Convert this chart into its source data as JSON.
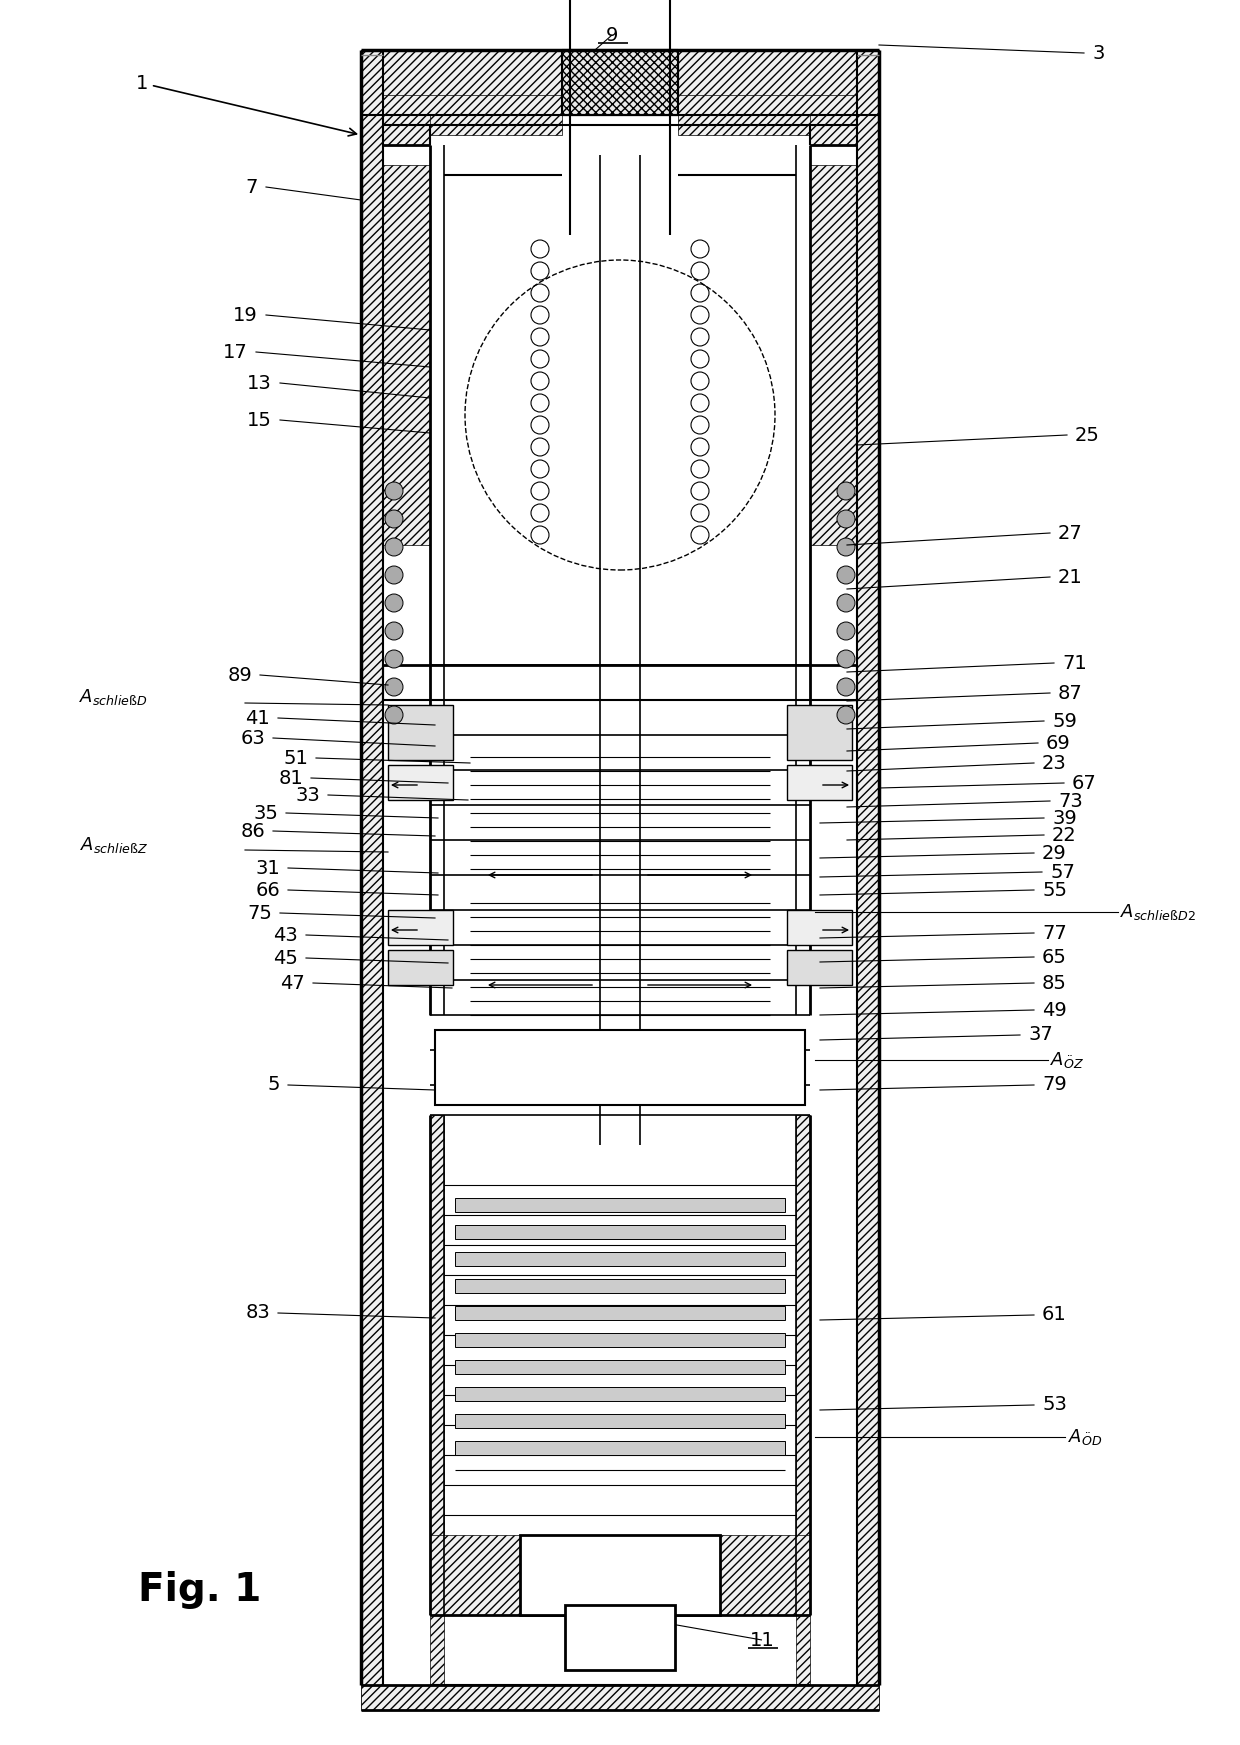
{
  "background_color": "#ffffff",
  "line_color": "#000000",
  "fig_label": "Fig. 1",
  "figsize": [
    12.4,
    17.45
  ],
  "dpi": 100,
  "labels_left": {
    "1": [
      150,
      1660,
      380,
      1610
    ],
    "7": [
      255,
      1555,
      380,
      1540
    ],
    "19": [
      255,
      1430,
      390,
      1415
    ],
    "13": [
      270,
      1360,
      390,
      1345
    ],
    "17": [
      248,
      1390,
      390,
      1375
    ],
    "15": [
      268,
      1325,
      390,
      1310
    ],
    "89": [
      250,
      1068,
      383,
      1058
    ],
    "41": [
      268,
      1025,
      390,
      1018
    ],
    "63": [
      262,
      1005,
      390,
      998
    ],
    "51": [
      305,
      985,
      415,
      980
    ],
    "81": [
      300,
      965,
      400,
      960
    ],
    "33": [
      318,
      948,
      415,
      943
    ],
    "35": [
      275,
      930,
      392,
      925
    ],
    "86": [
      262,
      912,
      390,
      907
    ],
    "31": [
      278,
      875,
      390,
      870
    ],
    "66": [
      278,
      853,
      392,
      848
    ],
    "75": [
      270,
      830,
      390,
      825
    ],
    "43": [
      295,
      808,
      392,
      803
    ],
    "45": [
      295,
      785,
      392,
      780
    ],
    "47": [
      302,
      760,
      400,
      755
    ],
    "5": [
      278,
      660,
      390,
      655
    ],
    "83": [
      268,
      430,
      385,
      425
    ]
  },
  "labels_right": {
    "3": [
      1090,
      1690,
      862,
      1695
    ],
    "25": [
      1070,
      1310,
      862,
      1305
    ],
    "27": [
      1055,
      1210,
      840,
      1200
    ],
    "21": [
      1055,
      1165,
      840,
      1158
    ],
    "71": [
      1060,
      1080,
      862,
      1073
    ],
    "87": [
      1055,
      1050,
      862,
      1044
    ],
    "59": [
      1050,
      1022,
      862,
      1016
    ],
    "69": [
      1044,
      1000,
      862,
      994
    ],
    "23": [
      1040,
      980,
      862,
      974
    ],
    "67": [
      1070,
      962,
      862,
      957
    ],
    "73": [
      1055,
      945,
      862,
      939
    ],
    "39": [
      1050,
      928,
      840,
      923
    ],
    "22": [
      1050,
      912,
      862,
      906
    ],
    "29": [
      1040,
      893,
      840,
      888
    ],
    "57": [
      1048,
      873,
      840,
      868
    ],
    "55": [
      1040,
      855,
      840,
      850
    ],
    "77": [
      1040,
      812,
      840,
      807
    ],
    "65": [
      1040,
      788,
      840,
      783
    ],
    "85": [
      1040,
      762,
      840,
      757
    ],
    "49": [
      1040,
      735,
      840,
      730
    ],
    "37": [
      1025,
      710,
      840,
      705
    ],
    "79": [
      1040,
      658,
      840,
      653
    ],
    "61": [
      1040,
      430,
      840,
      425
    ],
    "53": [
      1040,
      340,
      840,
      335
    ]
  },
  "labels_center": {
    "9": [
      612,
      1695
    ],
    "11": [
      760,
      105
    ]
  }
}
